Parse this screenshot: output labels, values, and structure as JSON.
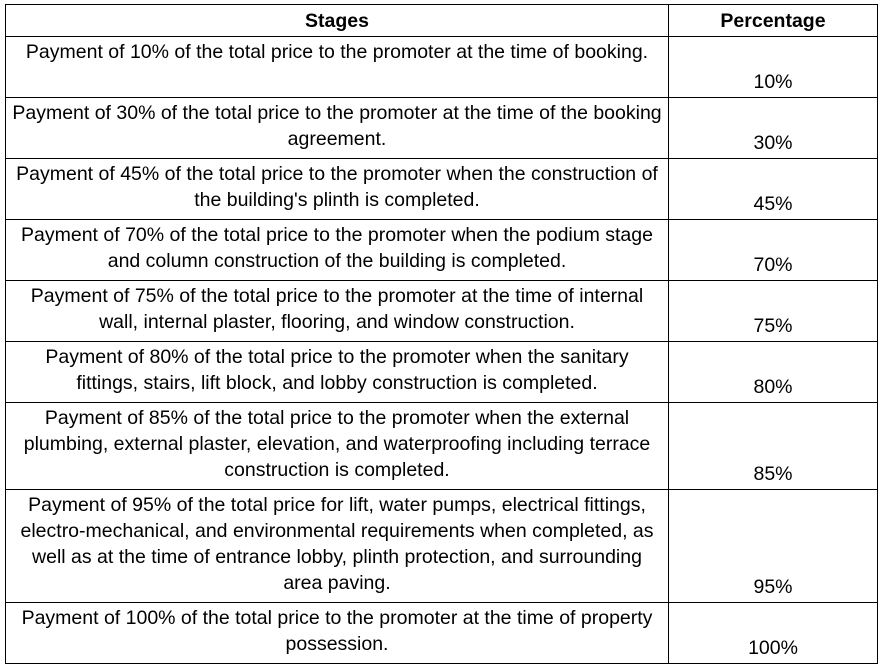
{
  "table": {
    "headers": {
      "stage": "Stages",
      "percentage": "Percentage"
    },
    "rows": [
      {
        "stage": "Payment of 10% of the total price to the promoter at the time of booking.",
        "percentage": "10%"
      },
      {
        "stage": "Payment of 30% of the total price to the promoter at the time of the booking agreement.",
        "percentage": "30%"
      },
      {
        "stage": "Payment of 45% of the total price to the promoter when the construction of the building's plinth is completed.",
        "percentage": "45%"
      },
      {
        "stage": "Payment of 70% of the total price to the promoter when the podium stage and column construction of the building is completed.",
        "percentage": "70%"
      },
      {
        "stage": "Payment of 75% of the total price to the promoter at the time of internal wall, internal plaster, flooring, and window construction.",
        "percentage": "75%"
      },
      {
        "stage": "Payment of 80% of the total price to the promoter when the sanitary fittings, stairs, lift block, and lobby construction is completed.",
        "percentage": "80%"
      },
      {
        "stage": "Payment of 85% of the total price to the promoter when the external plumbing, external plaster, elevation, and waterproofing including terrace construction is completed.",
        "percentage": "85%"
      },
      {
        "stage": "Payment of 95% of the total price for lift, water pumps, electrical fittings, electro-mechanical, and environmental requirements when completed, as well as at the time of entrance lobby, plinth protection, and surrounding area paving.",
        "percentage": "95%"
      },
      {
        "stage": "Payment of 100% of the total price to the promoter at the time of property possession.",
        "percentage": "100%"
      }
    ]
  }
}
